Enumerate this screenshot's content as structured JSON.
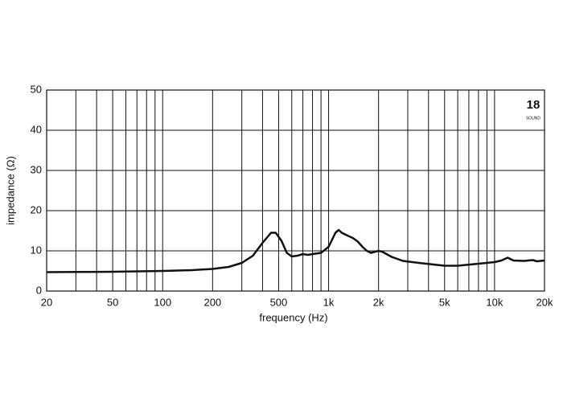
{
  "chart_data": {
    "type": "line",
    "xlabel": "frequency (Hz)",
    "ylabel": "impedance (Ω)",
    "logo": {
      "number": "18",
      "text": "SOUND"
    },
    "xscale": "log",
    "grid": true,
    "xlim": [
      20,
      20000
    ],
    "ylim": [
      0,
      50
    ],
    "xticks": [
      20,
      50,
      100,
      200,
      500,
      {
        "value": 1000,
        "label": "1k"
      },
      {
        "value": 2000,
        "label": "2k"
      },
      {
        "value": 5000,
        "label": "5k"
      },
      {
        "value": 10000,
        "label": "10k"
      },
      {
        "value": 20000,
        "label": "20k"
      }
    ],
    "xminor": [
      30,
      40,
      60,
      70,
      80,
      90,
      300,
      400,
      600,
      700,
      800,
      900,
      3000,
      4000,
      6000,
      7000,
      8000,
      9000
    ],
    "yticks": [
      0,
      10,
      20,
      30,
      40,
      50
    ],
    "x": [
      20,
      30,
      50,
      100,
      150,
      200,
      250,
      300,
      350,
      400,
      450,
      480,
      520,
      560,
      600,
      650,
      700,
      750,
      800,
      900,
      1000,
      1100,
      1150,
      1200,
      1300,
      1400,
      1500,
      1600,
      1700,
      1800,
      2000,
      2100,
      2400,
      2800,
      3500,
      5000,
      6000,
      8000,
      10000,
      11000,
      12000,
      13000,
      15000,
      17000,
      18000,
      20000
    ],
    "series": [
      {
        "color": "#111111",
        "values": [
          4.7,
          4.75,
          4.8,
          5.0,
          5.2,
          5.5,
          6.0,
          7.0,
          8.8,
          12,
          14.5,
          14.5,
          12.5,
          9.5,
          8.6,
          8.8,
          9.2,
          9.0,
          9.2,
          9.5,
          11,
          14.5,
          15.2,
          14.5,
          13.8,
          13.2,
          12.3,
          11.0,
          10.0,
          9.5,
          10.0,
          9.8,
          8.5,
          7.5,
          7.0,
          6.3,
          6.3,
          6.8,
          7.2,
          7.6,
          8.3,
          7.6,
          7.5,
          7.7,
          7.4,
          7.6
        ]
      }
    ]
  }
}
